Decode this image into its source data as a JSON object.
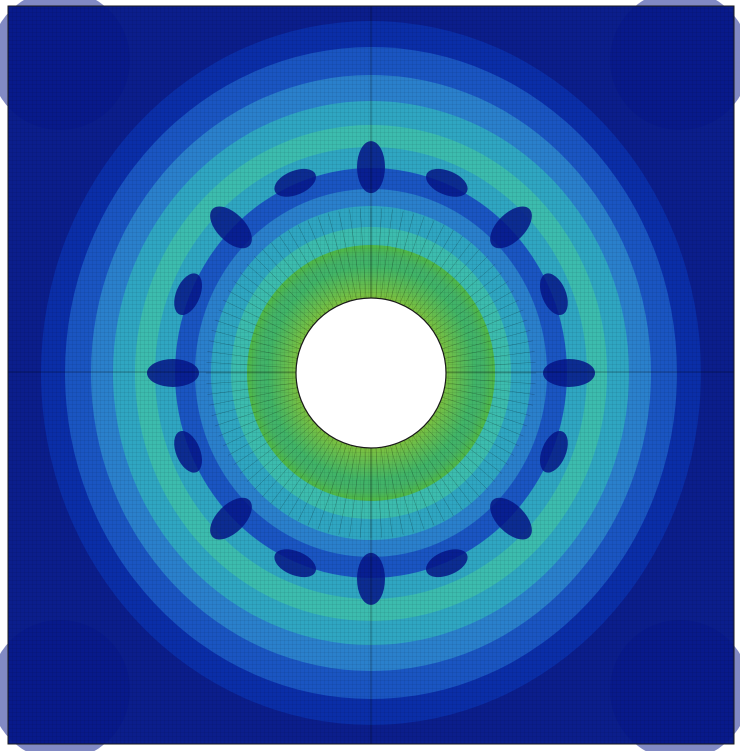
{
  "figure": {
    "kind": "finite-element contour plot",
    "colors": {
      "background": "#0b1e8c",
      "deep": "#06168a",
      "dark_blue": "#0a2ea8",
      "blue": "#1a55c2",
      "mid_blue": "#2a80cc",
      "teal": "#2fa6c2",
      "cyan_green": "#3cbcae",
      "green": "#4fb84a",
      "yellow_green": "#98c43a",
      "yellow": "#c8d03a",
      "hole": "#ffffff",
      "mesh_line": "#000000"
    }
  }
}
